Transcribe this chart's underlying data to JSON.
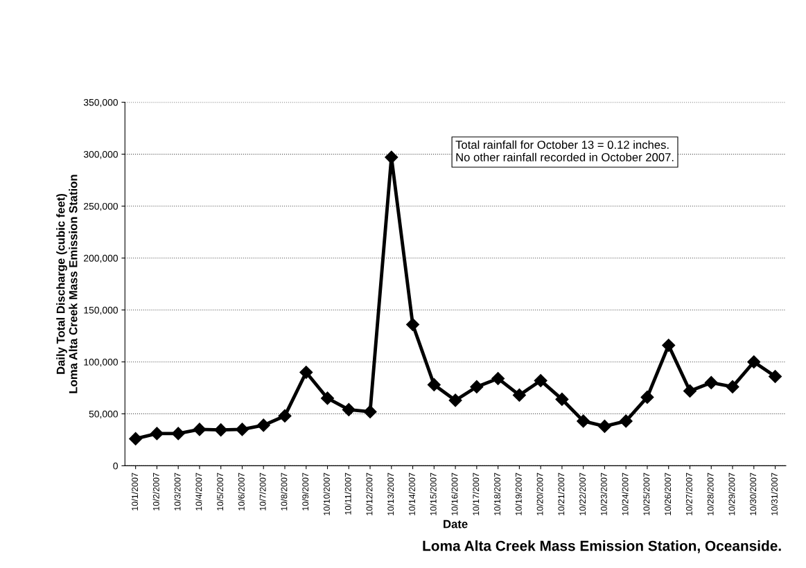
{
  "chart_data": {
    "type": "line",
    "xlabel": "Date",
    "ylabel": "Daily Total Discharge (cubic feet)\nLoma Alta Creek Mass Emission Station",
    "categories": [
      "10/1/2007",
      "10/2/2007",
      "10/3/2007",
      "10/4/2007",
      "10/5/2007",
      "10/6/2007",
      "10/7/2007",
      "10/8/2007",
      "10/9/2007",
      "10/10/2007",
      "10/11/2007",
      "10/12/2007",
      "10/13/2007",
      "10/14/2007",
      "10/15/2007",
      "10/16/2007",
      "10/17/2007",
      "10/18/2007",
      "10/19/2007",
      "10/20/2007",
      "10/21/2007",
      "10/22/2007",
      "10/23/2007",
      "10/24/2007",
      "10/25/2007",
      "10/26/2007",
      "10/27/2007",
      "10/28/2007",
      "10/29/2007",
      "10/30/2007",
      "10/31/2007"
    ],
    "series": [
      {
        "color": "#000000",
        "values": [
          26000,
          31000,
          31000,
          35000,
          34500,
          35000,
          39000,
          48000,
          90000,
          65000,
          54000,
          52000,
          297000,
          136000,
          78000,
          63000,
          76000,
          84000,
          68000,
          82000,
          64000,
          43000,
          38000,
          43000,
          66000,
          116000,
          72000,
          80000,
          76000,
          100000,
          86000
        ]
      }
    ],
    "ylim": [
      0,
      350000
    ],
    "yticks": [
      {
        "value": 0,
        "label": "0"
      },
      {
        "value": 50000,
        "label": "50,000"
      },
      {
        "value": 100000,
        "label": "100,000"
      },
      {
        "value": 150000,
        "label": "150,000"
      },
      {
        "value": 200000,
        "label": "200,000"
      },
      {
        "value": 250000,
        "label": "250,000"
      },
      {
        "value": 300000,
        "label": "300,000"
      },
      {
        "value": 350000,
        "label": "350,000"
      }
    ],
    "grid": "y",
    "marker": "diamond",
    "line_style": "solid",
    "annotations": [
      "Total rainfall for October 13 = 0.12 inches.\nNo other rainfall recorded in October 2007.",
      "Loma Alta Creek Mass Emission Station, Oceanside."
    ]
  }
}
